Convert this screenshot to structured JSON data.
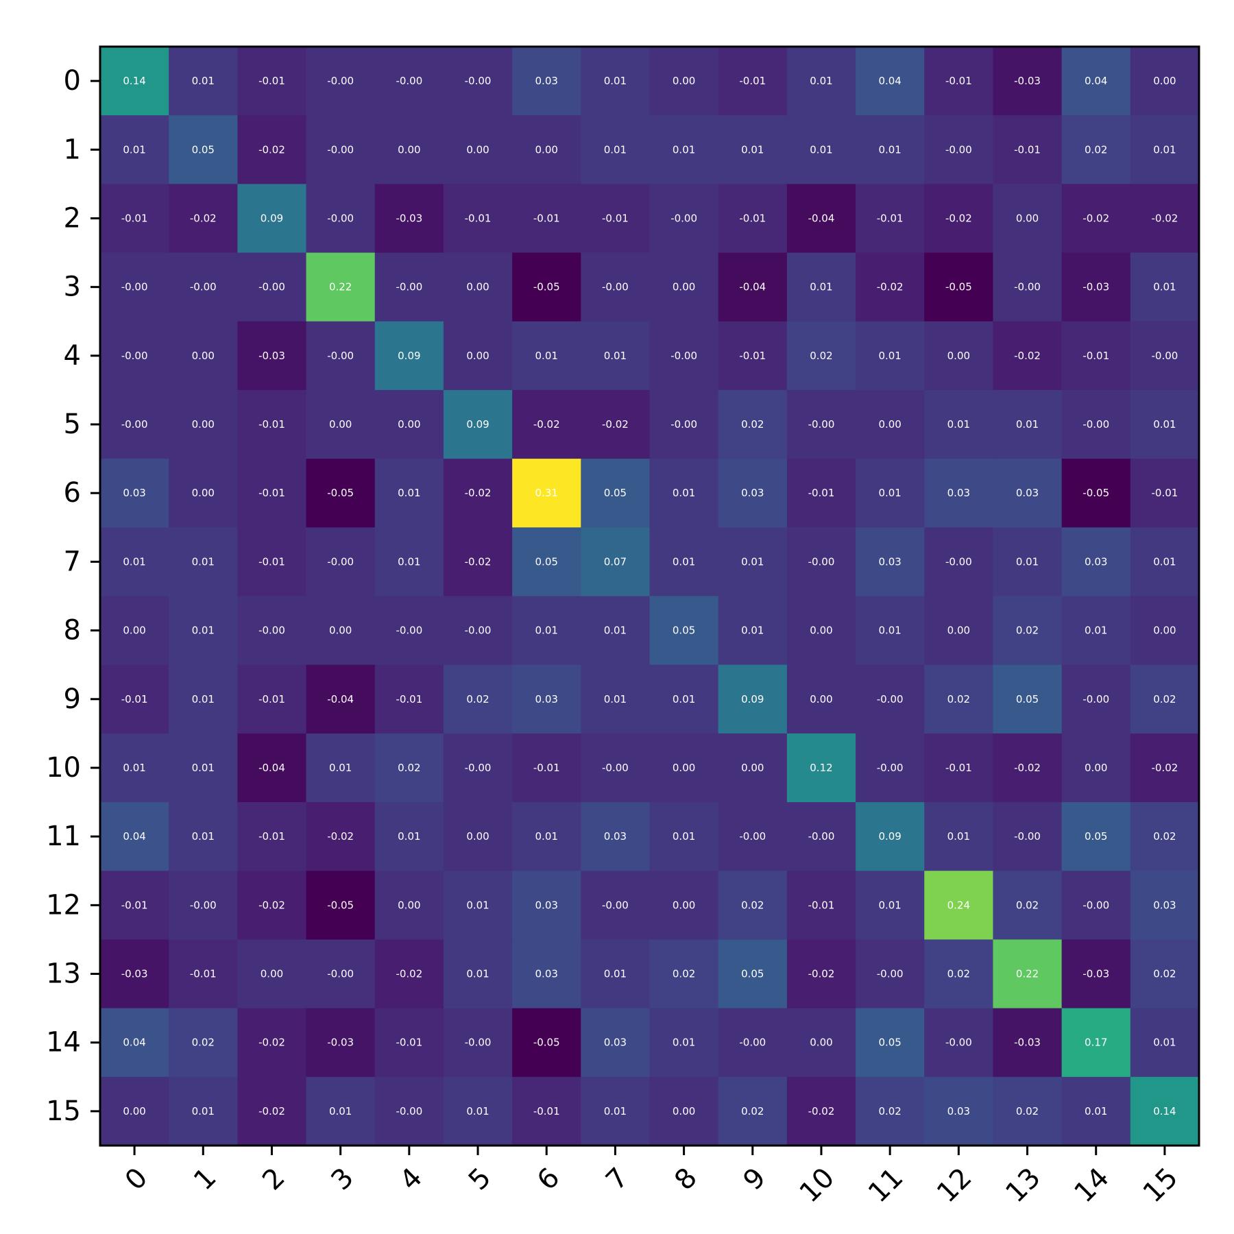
{
  "chart_data": {
    "type": "heatmap",
    "colormap": "viridis",
    "value_range": [
      -0.05,
      0.31
    ],
    "x_ticks": [
      "0",
      "1",
      "2",
      "3",
      "4",
      "5",
      "6",
      "7",
      "8",
      "9",
      "10",
      "11",
      "12",
      "13",
      "14",
      "15"
    ],
    "y_ticks": [
      "0",
      "1",
      "2",
      "3",
      "4",
      "5",
      "6",
      "7",
      "8",
      "9",
      "10",
      "11",
      "12",
      "13",
      "14",
      "15"
    ],
    "values": [
      [
        0.14,
        0.01,
        -0.01,
        -0.0,
        -0.0,
        -0.0,
        0.03,
        0.01,
        0.0,
        -0.01,
        0.01,
        0.04,
        -0.01,
        -0.03,
        0.04,
        0.0
      ],
      [
        0.01,
        0.05,
        -0.02,
        -0.0,
        0.0,
        0.0,
        0.0,
        0.01,
        0.01,
        0.01,
        0.01,
        0.01,
        -0.0,
        -0.01,
        0.02,
        0.01
      ],
      [
        -0.01,
        -0.02,
        0.09,
        -0.0,
        -0.03,
        -0.01,
        -0.01,
        -0.01,
        -0.0,
        -0.01,
        -0.04,
        -0.01,
        -0.02,
        0.0,
        -0.02,
        -0.02
      ],
      [
        -0.0,
        -0.0,
        -0.0,
        0.22,
        -0.0,
        0.0,
        -0.05,
        -0.0,
        0.0,
        -0.04,
        0.01,
        -0.02,
        -0.05,
        -0.0,
        -0.03,
        0.01
      ],
      [
        -0.0,
        0.0,
        -0.03,
        -0.0,
        0.09,
        0.0,
        0.01,
        0.01,
        -0.0,
        -0.01,
        0.02,
        0.01,
        0.0,
        -0.02,
        -0.01,
        -0.0
      ],
      [
        -0.0,
        0.0,
        -0.01,
        0.0,
        0.0,
        0.09,
        -0.02,
        -0.02,
        -0.0,
        0.02,
        -0.0,
        0.0,
        0.01,
        0.01,
        -0.0,
        0.01
      ],
      [
        0.03,
        0.0,
        -0.01,
        -0.05,
        0.01,
        -0.02,
        0.31,
        0.05,
        0.01,
        0.03,
        -0.01,
        0.01,
        0.03,
        0.03,
        -0.05,
        -0.01
      ],
      [
        0.01,
        0.01,
        -0.01,
        -0.0,
        0.01,
        -0.02,
        0.05,
        0.07,
        0.01,
        0.01,
        -0.0,
        0.03,
        -0.0,
        0.01,
        0.03,
        0.01
      ],
      [
        0.0,
        0.01,
        -0.0,
        0.0,
        -0.0,
        -0.0,
        0.01,
        0.01,
        0.05,
        0.01,
        0.0,
        0.01,
        0.0,
        0.02,
        0.01,
        0.0
      ],
      [
        -0.01,
        0.01,
        -0.01,
        -0.04,
        -0.01,
        0.02,
        0.03,
        0.01,
        0.01,
        0.09,
        0.0,
        -0.0,
        0.02,
        0.05,
        -0.0,
        0.02
      ],
      [
        0.01,
        0.01,
        -0.04,
        0.01,
        0.02,
        -0.0,
        -0.01,
        -0.0,
        0.0,
        0.0,
        0.12,
        -0.0,
        -0.01,
        -0.02,
        0.0,
        -0.02
      ],
      [
        0.04,
        0.01,
        -0.01,
        -0.02,
        0.01,
        0.0,
        0.01,
        0.03,
        0.01,
        -0.0,
        -0.0,
        0.09,
        0.01,
        -0.0,
        0.05,
        0.02
      ],
      [
        -0.01,
        -0.0,
        -0.02,
        -0.05,
        0.0,
        0.01,
        0.03,
        -0.0,
        0.0,
        0.02,
        -0.01,
        0.01,
        0.24,
        0.02,
        -0.0,
        0.03
      ],
      [
        -0.03,
        -0.01,
        0.0,
        -0.0,
        -0.02,
        0.01,
        0.03,
        0.01,
        0.02,
        0.05,
        -0.02,
        -0.0,
        0.02,
        0.22,
        -0.03,
        0.02
      ],
      [
        0.04,
        0.02,
        -0.02,
        -0.03,
        -0.01,
        -0.0,
        -0.05,
        0.03,
        0.01,
        -0.0,
        0.0,
        0.05,
        -0.0,
        -0.03,
        0.17,
        0.01
      ],
      [
        0.0,
        0.01,
        -0.02,
        0.01,
        -0.0,
        0.01,
        -0.01,
        0.01,
        0.0,
        0.02,
        -0.02,
        0.02,
        0.03,
        0.02,
        0.01,
        0.14
      ]
    ],
    "cell_labels": [
      [
        "0.14",
        "0.01",
        "-0.01",
        "-0.00",
        "-0.00",
        "-0.00",
        "0.03",
        "0.01",
        "0.00",
        "-0.01",
        "0.01",
        "0.04",
        "-0.01",
        "-0.03",
        "0.04",
        "0.00"
      ],
      [
        "0.01",
        "0.05",
        "-0.02",
        "-0.00",
        "0.00",
        "0.00",
        "0.00",
        "0.01",
        "0.01",
        "0.01",
        "0.01",
        "0.01",
        "-0.00",
        "-0.01",
        "0.02",
        "0.01"
      ],
      [
        "-0.01",
        "-0.02",
        "0.09",
        "-0.00",
        "-0.03",
        "-0.01",
        "-0.01",
        "-0.01",
        "-0.00",
        "-0.01",
        "-0.04",
        "-0.01",
        "-0.02",
        "0.00",
        "-0.02",
        "-0.02"
      ],
      [
        "-0.00",
        "-0.00",
        "-0.00",
        "0.22",
        "-0.00",
        "0.00",
        "-0.05",
        "-0.00",
        "0.00",
        "-0.04",
        "0.01",
        "-0.02",
        "-0.05",
        "-0.00",
        "-0.03",
        "0.01"
      ],
      [
        "-0.00",
        "0.00",
        "-0.03",
        "-0.00",
        "0.09",
        "0.00",
        "0.01",
        "0.01",
        "-0.00",
        "-0.01",
        "0.02",
        "0.01",
        "0.00",
        "-0.02",
        "-0.01",
        "-0.00"
      ],
      [
        "-0.00",
        "0.00",
        "-0.01",
        "0.00",
        "0.00",
        "0.09",
        "-0.02",
        "-0.02",
        "-0.00",
        "0.02",
        "-0.00",
        "0.00",
        "0.01",
        "0.01",
        "-0.00",
        "0.01"
      ],
      [
        "0.03",
        "0.00",
        "-0.01",
        "-0.05",
        "0.01",
        "-0.02",
        "0.31",
        "0.05",
        "0.01",
        "0.03",
        "-0.01",
        "0.01",
        "0.03",
        "0.03",
        "-0.05",
        "-0.01"
      ],
      [
        "0.01",
        "0.01",
        "-0.01",
        "-0.00",
        "0.01",
        "-0.02",
        "0.05",
        "0.07",
        "0.01",
        "0.01",
        "-0.00",
        "0.03",
        "-0.00",
        "0.01",
        "0.03",
        "0.01"
      ],
      [
        "0.00",
        "0.01",
        "-0.00",
        "0.00",
        "-0.00",
        "-0.00",
        "0.01",
        "0.01",
        "0.05",
        "0.01",
        "0.00",
        "0.01",
        "0.00",
        "0.02",
        "0.01",
        "0.00"
      ],
      [
        "-0.01",
        "0.01",
        "-0.01",
        "-0.04",
        "-0.01",
        "0.02",
        "0.03",
        "0.01",
        "0.01",
        "0.09",
        "0.00",
        "-0.00",
        "0.02",
        "0.05",
        "-0.00",
        "0.02"
      ],
      [
        "0.01",
        "0.01",
        "-0.04",
        "0.01",
        "0.02",
        "-0.00",
        "-0.01",
        "-0.00",
        "0.00",
        "0.00",
        "0.12",
        "-0.00",
        "-0.01",
        "-0.02",
        "0.00",
        "-0.02"
      ],
      [
        "0.04",
        "0.01",
        "-0.01",
        "-0.02",
        "0.01",
        "0.00",
        "0.01",
        "0.03",
        "0.01",
        "-0.00",
        "-0.00",
        "0.09",
        "0.01",
        "-0.00",
        "0.05",
        "0.02"
      ],
      [
        "-0.01",
        "-0.00",
        "-0.02",
        "-0.05",
        "0.00",
        "0.01",
        "0.03",
        "-0.00",
        "0.00",
        "0.02",
        "-0.01",
        "0.01",
        "0.24",
        "0.02",
        "-0.00",
        "0.03"
      ],
      [
        "-0.03",
        "-0.01",
        "0.00",
        "-0.00",
        "-0.02",
        "0.01",
        "0.03",
        "0.01",
        "0.02",
        "0.05",
        "-0.02",
        "-0.00",
        "0.02",
        "0.22",
        "-0.03",
        "0.02"
      ],
      [
        "0.04",
        "0.02",
        "-0.02",
        "-0.03",
        "-0.01",
        "-0.00",
        "-0.05",
        "0.03",
        "0.01",
        "-0.00",
        "0.00",
        "0.05",
        "-0.00",
        "-0.03",
        "0.17",
        "0.01"
      ],
      [
        "0.00",
        "0.01",
        "-0.02",
        "0.01",
        "-0.00",
        "0.01",
        "-0.01",
        "0.01",
        "0.00",
        "0.02",
        "-0.02",
        "0.02",
        "0.03",
        "0.02",
        "0.01",
        "0.14"
      ]
    ],
    "title": "",
    "xlabel": "",
    "ylabel": "",
    "grid": false,
    "legend": "none"
  }
}
